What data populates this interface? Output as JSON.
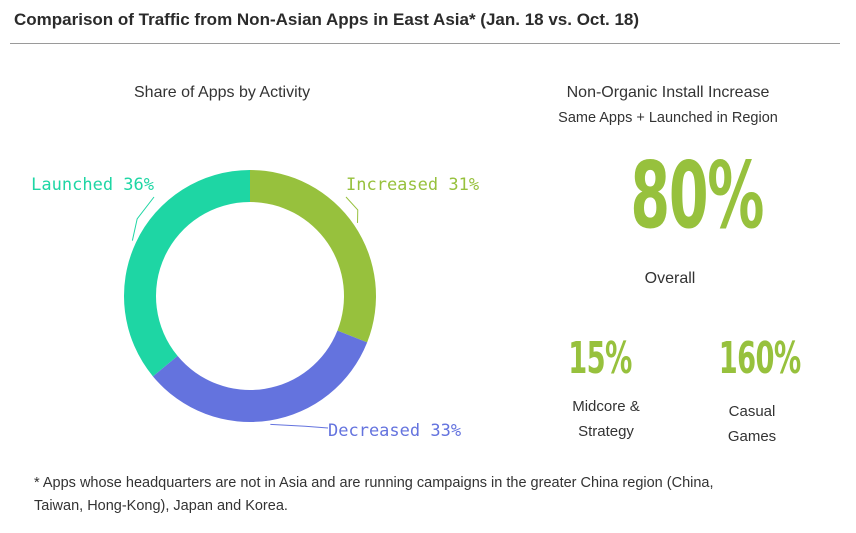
{
  "header": {
    "title": "Comparison of Traffic from Non-Asian Apps in East Asia* (Jan. 18 vs. Oct. 18)"
  },
  "chart_data": {
    "type": "pie",
    "title": "Share of Apps by Activity",
    "categories": [
      "Increased",
      "Decreased",
      "Launched"
    ],
    "values": [
      31,
      33,
      36
    ],
    "labels": [
      "Increased 31%",
      "Decreased  33%",
      "Launched 36%"
    ],
    "colors": [
      "#97c13d",
      "#6473de",
      "#1ed6a4"
    ],
    "donut": true
  },
  "stats": {
    "title": "Non-Organic Install Increase",
    "subtitle": "Same Apps + Launched in Region",
    "overall_value": "80%",
    "overall_label": "Overall",
    "midcore_value": "15%",
    "midcore_label_line1": "Midcore &",
    "midcore_label_line2": "Strategy",
    "casual_value": "160%",
    "casual_label_line1": "Casual",
    "casual_label_line2": "Games",
    "accent_color": "#97c13d"
  },
  "footnote": {
    "line1": "* Apps whose headquarters are not in Asia and are running campaigns in the greater China region (China,",
    "line2": "Taiwan, Hong-Kong), Japan and Korea."
  }
}
